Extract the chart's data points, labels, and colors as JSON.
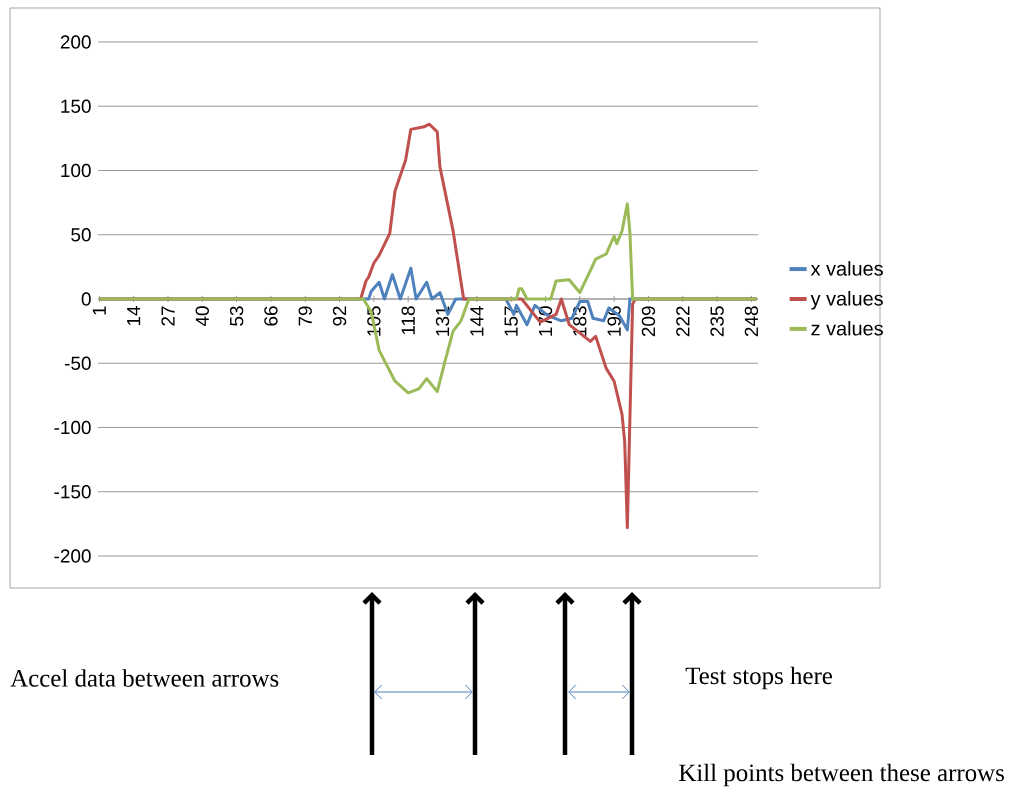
{
  "chart_data": {
    "type": "line",
    "xlim": [
      0.5,
      250.5
    ],
    "xticks": [
      1,
      14,
      27,
      40,
      53,
      66,
      79,
      92,
      105,
      118,
      131,
      144,
      157,
      170,
      183,
      196,
      209,
      222,
      235,
      248
    ],
    "ylim": [
      -200,
      200
    ],
    "yticks": [
      -200,
      -150,
      -100,
      -50,
      0,
      50,
      100,
      150,
      200
    ],
    "grid": "y",
    "legend": "right",
    "marker": "none",
    "line_style": "solid",
    "series": [
      {
        "name": "x values",
        "color": "#4f81bd",
        "x": [
          1,
          103,
          104,
          107,
          109,
          112,
          115,
          119,
          121,
          125,
          127,
          130,
          133,
          136,
          155,
          158,
          159,
          163,
          166,
          171,
          176,
          180,
          183,
          186,
          188,
          192,
          194,
          198,
          201,
          202,
          250
        ],
        "values": [
          0,
          0,
          6,
          13,
          0,
          19,
          0,
          24,
          0,
          13,
          0,
          5,
          -12,
          0,
          0,
          -12,
          -5,
          -20,
          -5,
          -13,
          -17,
          -15,
          -2,
          -2,
          -15,
          -17,
          -7,
          -13,
          -24,
          0,
          0
        ]
      },
      {
        "name": "y values",
        "color": "#c0504d",
        "x": [
          1,
          100,
          102,
          103,
          105,
          107,
          111,
          113,
          117,
          119,
          124,
          126,
          129,
          130,
          135,
          139,
          161,
          168,
          174,
          176,
          179,
          187,
          189,
          193,
          196,
          199,
          200,
          201,
          203,
          204,
          250
        ],
        "values": [
          0,
          0,
          14,
          17,
          28,
          34,
          51,
          84,
          108,
          132,
          134,
          136,
          130,
          103,
          53,
          0,
          0,
          -18,
          -12,
          0,
          -20,
          -33,
          -29,
          -54,
          -64,
          -90,
          -111,
          -178,
          -4,
          0,
          0
        ]
      },
      {
        "name": "z values",
        "color": "#9bbb59",
        "x": [
          1,
          101,
          104,
          107,
          113,
          118,
          122,
          125,
          129,
          132,
          135,
          138,
          141,
          159,
          160,
          161,
          163,
          172,
          174,
          179,
          183,
          187,
          189,
          193,
          196,
          197,
          199,
          201,
          202,
          203,
          250
        ],
        "values": [
          0,
          0,
          -10,
          -40,
          -64,
          -73,
          -70,
          -62,
          -72,
          -48,
          -25,
          -17,
          0,
          0,
          8,
          8,
          0,
          0,
          14,
          15,
          5,
          22,
          31,
          35,
          49,
          43,
          53,
          74,
          51,
          0,
          0
        ]
      }
    ],
    "annotations": [
      "Accel data between arrows",
      "Test stops here",
      "Kill points between these arrows"
    ]
  }
}
